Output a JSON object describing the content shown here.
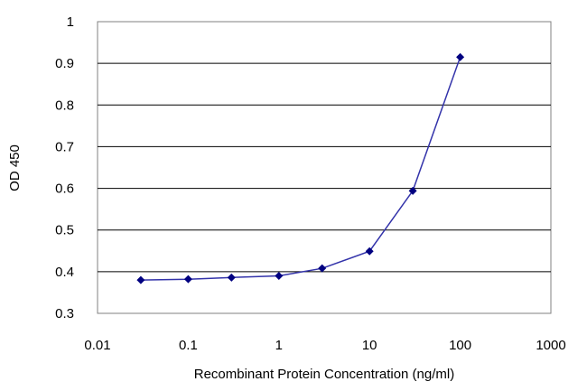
{
  "chart_data": {
    "type": "line",
    "xlabel": "Recombinant Protein Concentration (ng/ml)",
    "ylabel": "OD 450",
    "x_scale": "log",
    "xlim": [
      0.01,
      1000
    ],
    "ylim": [
      0.3,
      1
    ],
    "x_ticks": [
      0.01,
      0.1,
      1,
      10,
      100,
      1000
    ],
    "x_tick_labels": [
      "0.01",
      "0.1",
      "1",
      "10",
      "100",
      "1000"
    ],
    "y_ticks": [
      0.3,
      0.4,
      0.5,
      0.6,
      0.7,
      0.8,
      0.9,
      1
    ],
    "y_tick_labels": [
      "0.3",
      "0.4",
      "0.5",
      "0.6",
      "0.7",
      "0.8",
      "0.9",
      "1"
    ],
    "grid": "horizontal",
    "series": [
      {
        "x": [
          0.03,
          0.1,
          0.3,
          1,
          3,
          10,
          30,
          100
        ],
        "y": [
          0.38,
          0.382,
          0.386,
          0.39,
          0.408,
          0.449,
          0.594,
          0.915
        ]
      }
    ],
    "colors": {
      "line": "#3333aa",
      "marker": "#000080",
      "grid": "#000000",
      "plot_border": "#808080"
    }
  }
}
